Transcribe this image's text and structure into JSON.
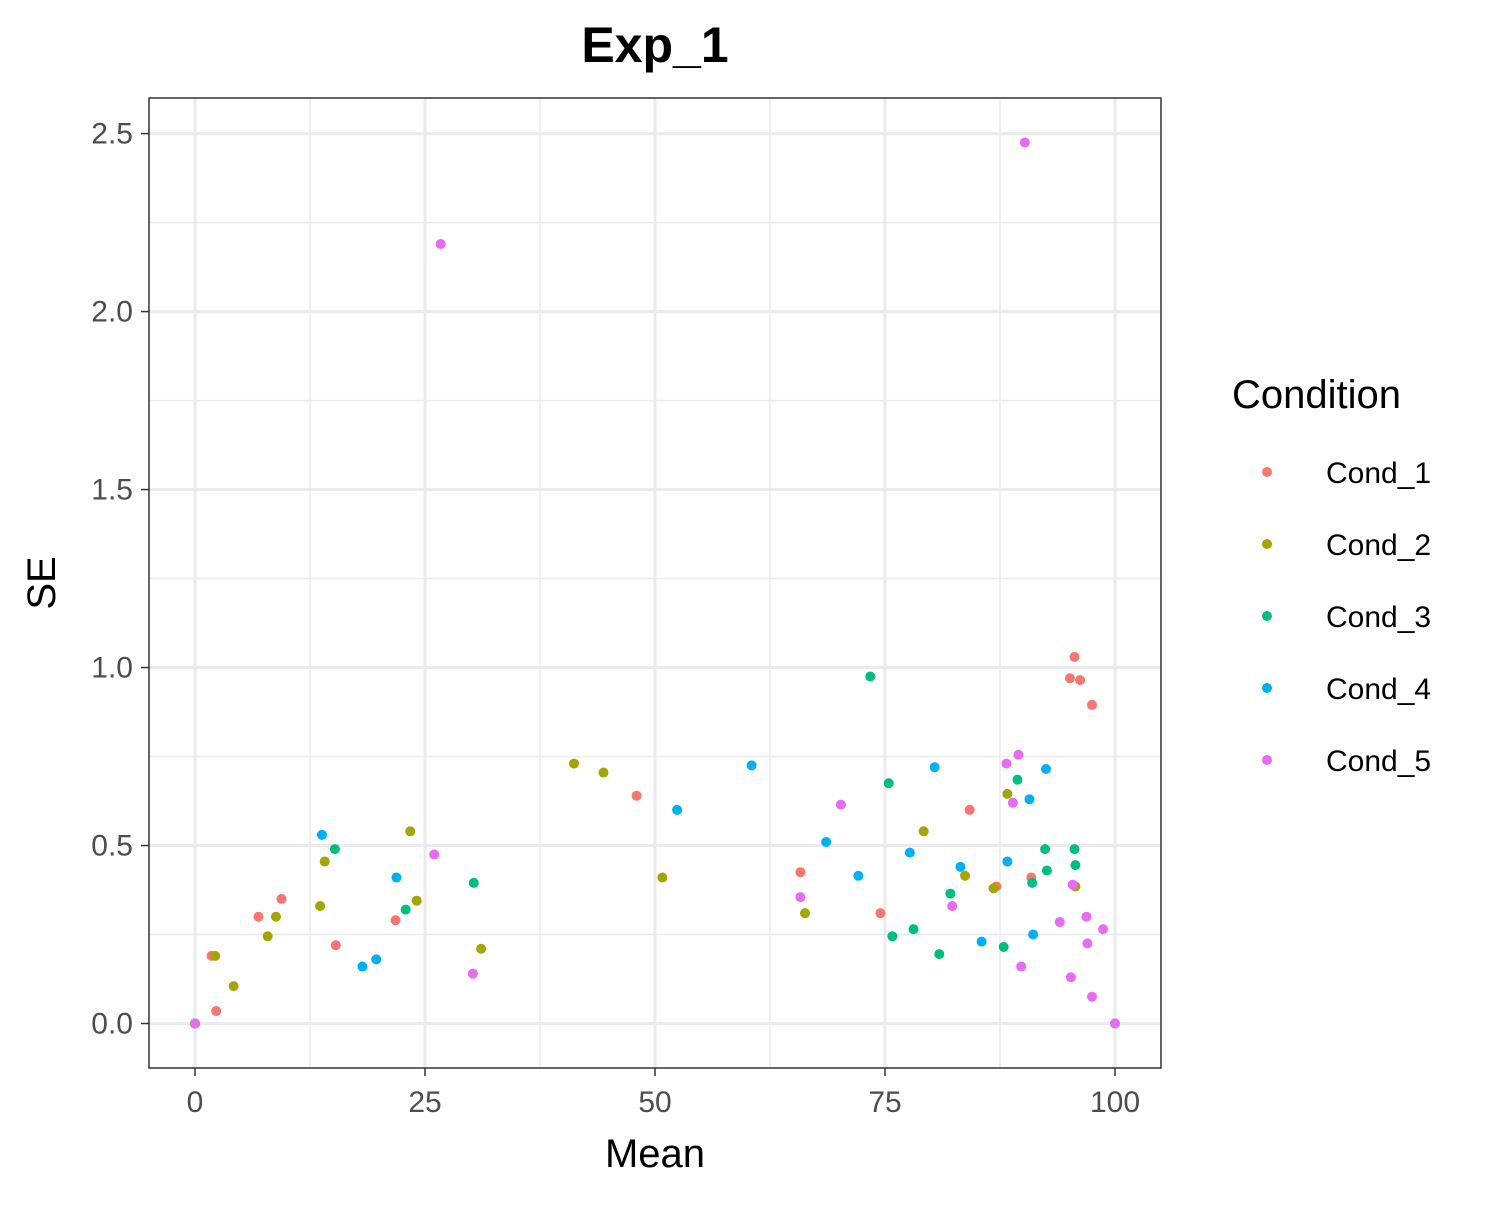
{
  "chart_data": {
    "type": "scatter",
    "title": "Exp_1",
    "xlabel": "Mean",
    "ylabel": "SE",
    "xlim": [
      -5,
      105
    ],
    "ylim": [
      -0.125,
      2.6
    ],
    "x_ticks": [
      0,
      25,
      50,
      75,
      100
    ],
    "x_tick_labels": [
      "0",
      "25",
      "50",
      "75",
      "100"
    ],
    "y_ticks": [
      0,
      0.5,
      1,
      1.5,
      2,
      2.5
    ],
    "y_tick_labels": [
      "0.0",
      "0.5",
      "1.0",
      "1.5",
      "2.0",
      "2.5"
    ],
    "grid": true,
    "legend": {
      "title": "Condition",
      "placement": "right"
    },
    "series": [
      {
        "name": "Cond_1",
        "color": "#F8766D",
        "points": [
          [
            0,
            0
          ],
          [
            1.8,
            0.19
          ],
          [
            2.3,
            0.035
          ],
          [
            6.9,
            0.3
          ],
          [
            9.4,
            0.35
          ],
          [
            15.3,
            0.22
          ],
          [
            21.8,
            0.29
          ],
          [
            48,
            0.64
          ],
          [
            65.8,
            0.425
          ],
          [
            74.5,
            0.31
          ],
          [
            84.2,
            0.6
          ],
          [
            87.1,
            0.385
          ],
          [
            90.9,
            0.41
          ],
          [
            95.1,
            0.97
          ],
          [
            95.6,
            1.03
          ],
          [
            96.2,
            0.965
          ],
          [
            97.5,
            0.895
          ]
        ]
      },
      {
        "name": "Cond_2",
        "color": "#A3A500",
        "points": [
          [
            0,
            0
          ],
          [
            2.2,
            0.19
          ],
          [
            4.2,
            0.105
          ],
          [
            7.9,
            0.245
          ],
          [
            8.8,
            0.3
          ],
          [
            13.6,
            0.33
          ],
          [
            14.1,
            0.455
          ],
          [
            23.4,
            0.54
          ],
          [
            24.1,
            0.345
          ],
          [
            31.1,
            0.21
          ],
          [
            41.2,
            0.73
          ],
          [
            44.4,
            0.705
          ],
          [
            50.8,
            0.41
          ],
          [
            66.3,
            0.31
          ],
          [
            79.2,
            0.54
          ],
          [
            83.7,
            0.415
          ],
          [
            86.8,
            0.38
          ],
          [
            88.3,
            0.645
          ],
          [
            95.7,
            0.385
          ]
        ]
      },
      {
        "name": "Cond_3",
        "color": "#00BF7D",
        "points": [
          [
            0,
            0
          ],
          [
            15.2,
            0.49
          ],
          [
            22.9,
            0.32
          ],
          [
            30.3,
            0.395
          ],
          [
            73.4,
            0.975
          ],
          [
            75.4,
            0.675
          ],
          [
            75.8,
            0.245
          ],
          [
            78.1,
            0.265
          ],
          [
            80.9,
            0.195
          ],
          [
            82.1,
            0.365
          ],
          [
            87.9,
            0.215
          ],
          [
            89.4,
            0.685
          ],
          [
            91.0,
            0.395
          ],
          [
            92.4,
            0.49
          ],
          [
            92.6,
            0.43
          ],
          [
            95.6,
            0.49
          ],
          [
            95.7,
            0.445
          ]
        ]
      },
      {
        "name": "Cond_4",
        "color": "#00B0F6",
        "points": [
          [
            0,
            0
          ],
          [
            13.8,
            0.53
          ],
          [
            18.2,
            0.16
          ],
          [
            19.7,
            0.18
          ],
          [
            21.9,
            0.41
          ],
          [
            52.4,
            0.6
          ],
          [
            60.5,
            0.725
          ],
          [
            68.6,
            0.51
          ],
          [
            72.1,
            0.415
          ],
          [
            77.7,
            0.48
          ],
          [
            80.4,
            0.72
          ],
          [
            83.2,
            0.44
          ],
          [
            85.5,
            0.23
          ],
          [
            88.3,
            0.455
          ],
          [
            90.7,
            0.63
          ],
          [
            91.1,
            0.25
          ],
          [
            92.5,
            0.715
          ],
          [
            100,
            0
          ]
        ]
      },
      {
        "name": "Cond_5",
        "color": "#E76BF3",
        "points": [
          [
            0,
            0
          ],
          [
            26.0,
            0.475
          ],
          [
            26.7,
            2.19
          ],
          [
            30.2,
            0.14
          ],
          [
            65.8,
            0.355
          ],
          [
            70.2,
            0.615
          ],
          [
            82.3,
            0.33
          ],
          [
            88.2,
            0.73
          ],
          [
            88.9,
            0.62
          ],
          [
            89.5,
            0.755
          ],
          [
            89.8,
            0.16
          ],
          [
            90.2,
            2.475
          ],
          [
            94.0,
            0.285
          ],
          [
            95.2,
            0.13
          ],
          [
            95.4,
            0.39
          ],
          [
            96.9,
            0.3
          ],
          [
            97.0,
            0.225
          ],
          [
            97.5,
            0.075
          ],
          [
            98.7,
            0.265
          ],
          [
            100,
            0
          ]
        ]
      }
    ]
  }
}
